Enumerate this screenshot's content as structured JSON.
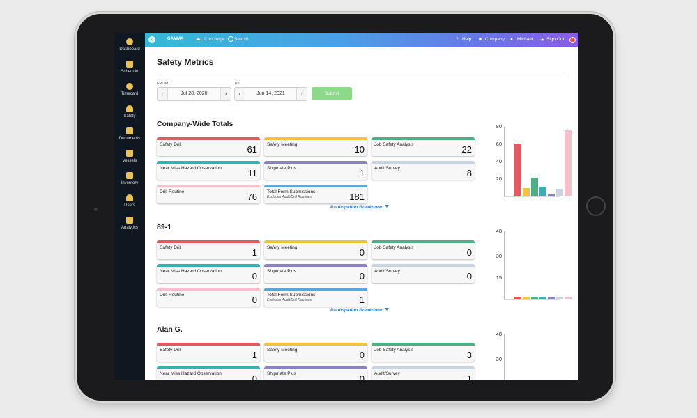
{
  "sidebar": {
    "items": [
      {
        "label": "Dashboard",
        "icon": "dashboard-icon"
      },
      {
        "label": "Schedule",
        "icon": "calendar-icon"
      },
      {
        "label": "Timecard",
        "icon": "clock-icon"
      },
      {
        "label": "Safety",
        "icon": "hard-hat-icon"
      },
      {
        "label": "Documents",
        "icon": "documents-icon"
      },
      {
        "label": "Vessels",
        "icon": "vessel-icon"
      },
      {
        "label": "Inventory",
        "icon": "inventory-icon"
      },
      {
        "label": "Users",
        "icon": "user-icon"
      },
      {
        "label": "Analytics",
        "icon": "analytics-icon"
      }
    ]
  },
  "topbar": {
    "brand": "GAMMA",
    "concierge": "Concierge",
    "search": "Search",
    "help": "Help",
    "company": "Company",
    "user": "Michael",
    "signout": "Sign Out"
  },
  "page": {
    "title": "Safety Metrics",
    "from_label": "FROM",
    "to_label": "TO",
    "from_date": "Jul 28, 2020",
    "to_date": "Jun 14, 2021",
    "prev": "‹",
    "next": "›",
    "submit": "Submit",
    "breakdown": "Participation Breakdown"
  },
  "colors": {
    "safety_drill": "#e05a5e",
    "safety_meeting": "#f2c33f",
    "job_safety_analysis": "#4caf86",
    "near_miss": "#3aaeb0",
    "shipmate_plus": "#8a83c1",
    "audit_survey": "#c9d4e0",
    "drill_routine": "#f6bfcb",
    "total_form": "#5aa7dc"
  },
  "sections": [
    {
      "title": "Company-Wide Totals",
      "cards": [
        {
          "key": "safety_drill",
          "label": "Safety Drill",
          "value": "61"
        },
        {
          "key": "safety_meeting",
          "label": "Safety Meeting",
          "value": "10"
        },
        {
          "key": "job_safety_analysis",
          "label": "Job Safety Analysis",
          "value": "22"
        },
        {
          "key": "near_miss",
          "label": "Near Miss Hazard Observation",
          "value": "11"
        },
        {
          "key": "shipmate_plus",
          "label": "Shipmate Plus",
          "value": "1"
        },
        {
          "key": "audit_survey",
          "label": "Audit/Survey",
          "value": "8"
        },
        {
          "key": "drill_routine",
          "label": "Drill Routine",
          "value": "76"
        },
        {
          "key": "total_form",
          "label": "Total Form Submissions",
          "sub": "Excludes Audit/Drill Routines",
          "value": "181"
        }
      ]
    },
    {
      "title": "89-1",
      "cards": [
        {
          "key": "safety_drill",
          "label": "Safety Drill",
          "value": "1"
        },
        {
          "key": "safety_meeting",
          "label": "Safety Meeting",
          "value": "0"
        },
        {
          "key": "job_safety_analysis",
          "label": "Job Safety Analysis",
          "value": "0"
        },
        {
          "key": "near_miss",
          "label": "Near Miss Hazard Observation",
          "value": "0"
        },
        {
          "key": "shipmate_plus",
          "label": "Shipmate Plus",
          "value": "0"
        },
        {
          "key": "audit_survey",
          "label": "Audit/Survey",
          "value": "0"
        },
        {
          "key": "drill_routine",
          "label": "Drill Routine",
          "value": "0"
        },
        {
          "key": "total_form",
          "label": "Total Form Submissions",
          "sub": "Excludes Audit/Drill Routines",
          "value": "1"
        }
      ]
    },
    {
      "title": "Alan G.",
      "cards": [
        {
          "key": "safety_drill",
          "label": "Safety Drill",
          "value": "1"
        },
        {
          "key": "safety_meeting",
          "label": "Safety Meeting",
          "value": "0"
        },
        {
          "key": "job_safety_analysis",
          "label": "Job Safety Analysis",
          "value": "3"
        },
        {
          "key": "near_miss",
          "label": "Near Miss Hazard Observation",
          "value": "0"
        },
        {
          "key": "shipmate_plus",
          "label": "Shipmate Plus",
          "value": "0"
        },
        {
          "key": "audit_survey",
          "label": "Audit/Survey",
          "value": "1"
        }
      ]
    }
  ],
  "chart_data": [
    {
      "type": "bar",
      "categories": [
        "Safety Drill",
        "Safety Meeting",
        "Job Safety Analysis",
        "Near Miss Hazard Observation",
        "Shipmate Plus",
        "Audit/Survey",
        "Drill Routine"
      ],
      "values": [
        61,
        10,
        22,
        11,
        1,
        8,
        76
      ],
      "yticks": [
        20,
        40,
        60,
        80
      ],
      "ylim": [
        0,
        80
      ]
    },
    {
      "type": "bar",
      "categories": [
        "Safety Drill",
        "Safety Meeting",
        "Job Safety Analysis",
        "Near Miss Hazard Observation",
        "Shipmate Plus",
        "Audit/Survey",
        "Drill Routine"
      ],
      "values": [
        1,
        0,
        0,
        0,
        0,
        0,
        0
      ],
      "yticks": [
        15,
        30,
        48
      ],
      "ylim": [
        0,
        48
      ]
    },
    {
      "type": "bar",
      "categories": [
        "Safety Drill",
        "Safety Meeting",
        "Job Safety Analysis",
        "Near Miss Hazard Observation",
        "Shipmate Plus",
        "Audit/Survey"
      ],
      "values": [
        1,
        0,
        3,
        0,
        0,
        1
      ],
      "yticks": [
        30,
        48
      ],
      "ylim": [
        0,
        48
      ]
    }
  ]
}
